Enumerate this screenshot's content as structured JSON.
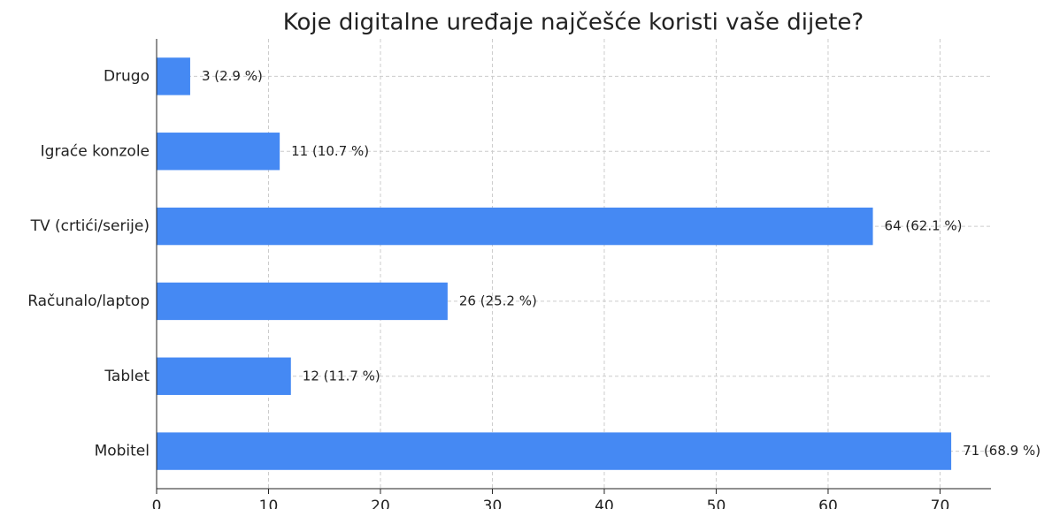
{
  "chart_data": {
    "type": "barh",
    "title": "Koje digitalne uređaje najčešće koristi vaše dijete?",
    "categories": [
      "Mobitel",
      "Tablet",
      "Računalo/laptop",
      "TV (crtići/serije)",
      "Igraće konzole",
      "Drugo"
    ],
    "values": [
      71,
      12,
      26,
      64,
      11,
      3
    ],
    "value_labels": [
      "71 (68.9 %)",
      "12 (11.7 %)",
      "26 (25.2 %)",
      "64 (62.1 %)",
      "11 (10.7 %)",
      "3 (2.9 %)"
    ],
    "color": "#4589f3",
    "xlim": [
      0,
      74.55
    ],
    "xticks": [
      0,
      10,
      20,
      30,
      40,
      50,
      60,
      70
    ],
    "grid": true
  }
}
